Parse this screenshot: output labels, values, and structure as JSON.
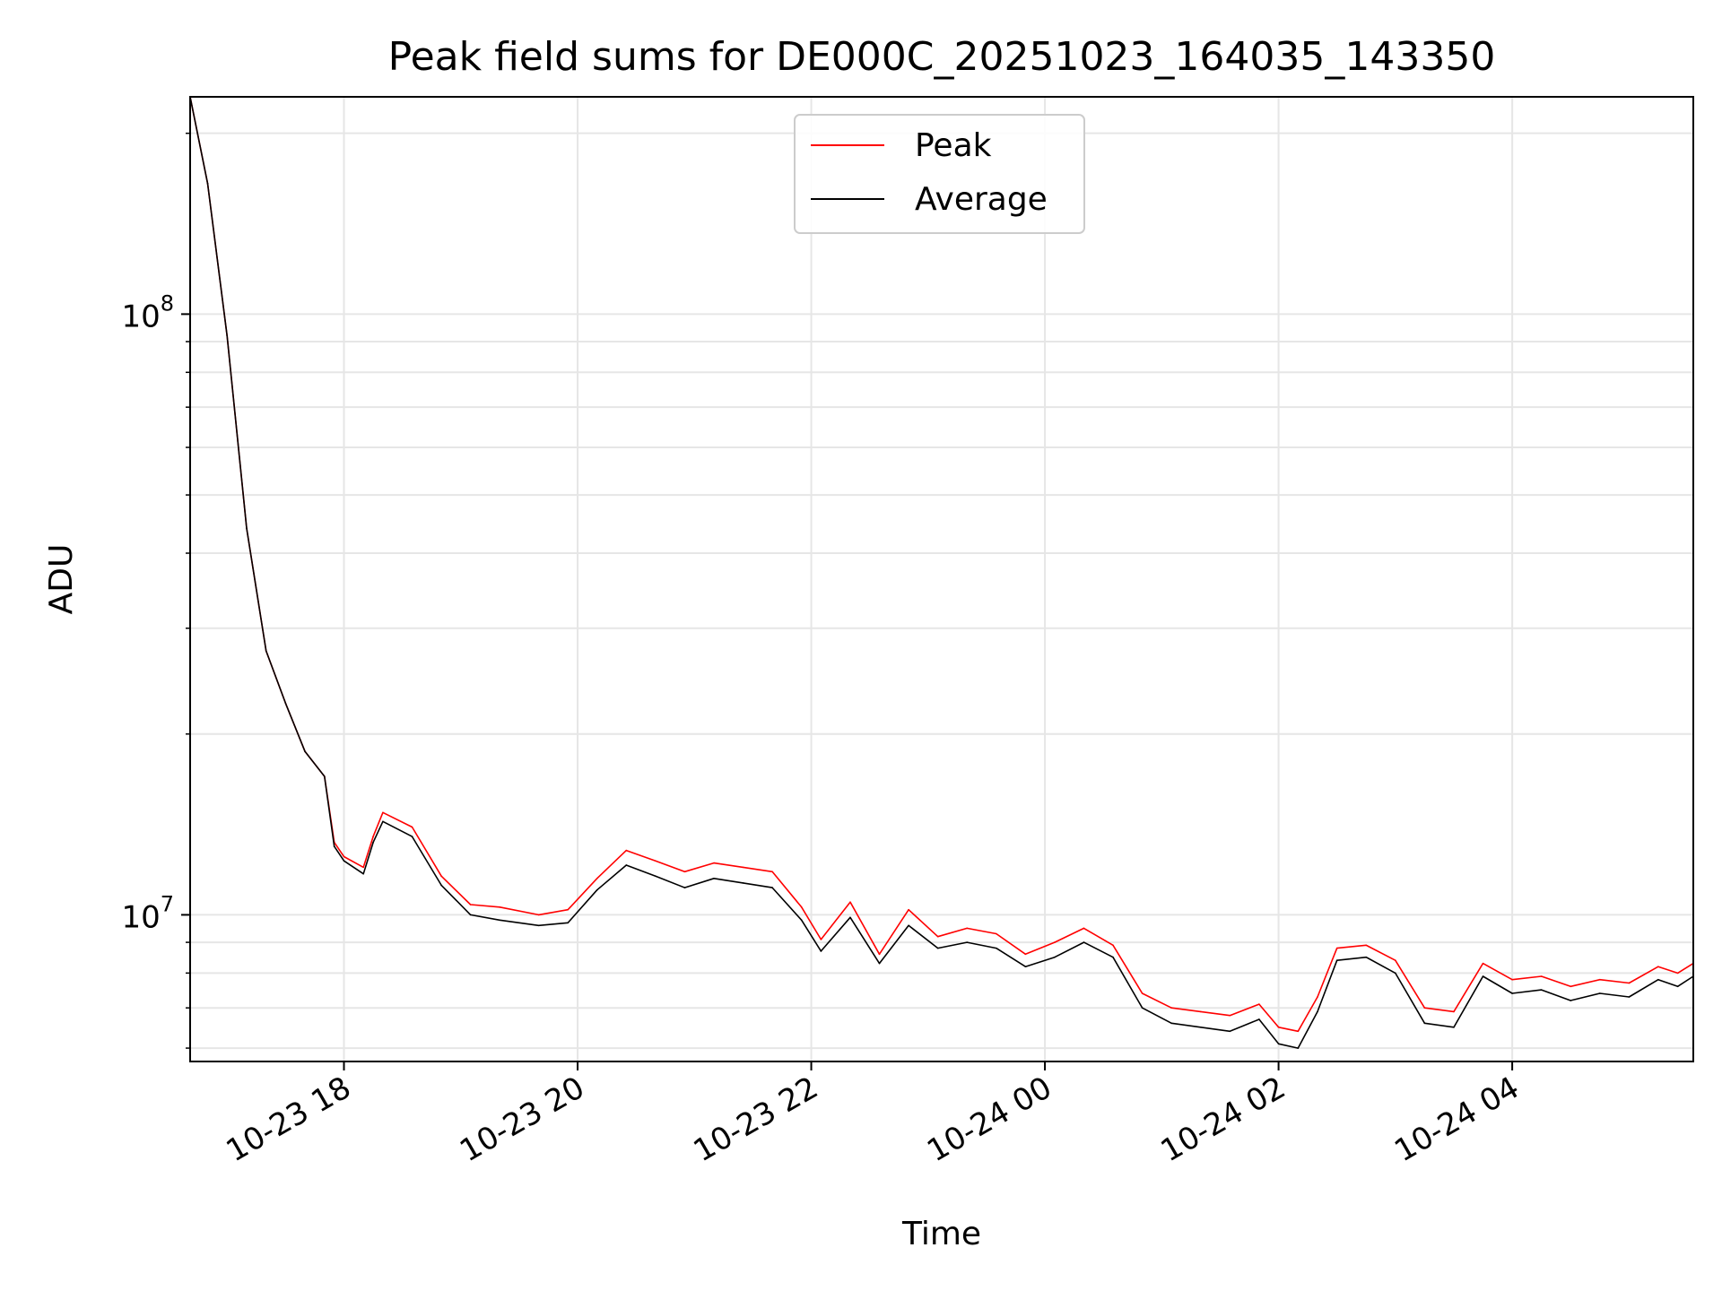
{
  "chart_data": {
    "type": "line",
    "title": "Peak field sums for DE000C_20251023_164035_143350",
    "xlabel": "Time",
    "ylabel": "ADU",
    "yscale": "log",
    "x_range": [
      "2025-10-23 16:41",
      "2025-10-24 05:33"
    ],
    "ylim": [
      5700000,
      230000000
    ],
    "grid": true,
    "legend_position": "top-center",
    "x_ticks": [
      {
        "time": "2025-10-23 18:00",
        "label": "10-23 18"
      },
      {
        "time": "2025-10-23 20:00",
        "label": "10-23 20"
      },
      {
        "time": "2025-10-23 22:00",
        "label": "10-23 22"
      },
      {
        "time": "2025-10-24 00:00",
        "label": "10-24 00"
      },
      {
        "time": "2025-10-24 02:00",
        "label": "10-24 02"
      },
      {
        "time": "2025-10-24 04:00",
        "label": "10-24 04"
      }
    ],
    "y_major_ticks": [
      {
        "value": 10000000,
        "base": "10",
        "exp": "7"
      },
      {
        "value": 100000000,
        "base": "10",
        "exp": "8"
      }
    ],
    "y_minor_ticks": [
      6000000,
      7000000,
      8000000,
      9000000,
      20000000,
      30000000,
      40000000,
      50000000,
      60000000,
      70000000,
      80000000,
      90000000,
      200000000
    ],
    "series": [
      {
        "name": "Peak",
        "color": "#ff0000",
        "points": [
          [
            "2025-10-23 16:41",
            230000000
          ],
          [
            "2025-10-23 16:50",
            165000000
          ],
          [
            "2025-10-23 17:00",
            92000000
          ],
          [
            "2025-10-23 17:10",
            44000000
          ],
          [
            "2025-10-23 17:20",
            27500000
          ],
          [
            "2025-10-23 17:30",
            22500000
          ],
          [
            "2025-10-23 17:40",
            18700000
          ],
          [
            "2025-10-23 17:50",
            17000000
          ],
          [
            "2025-10-23 17:55",
            13200000
          ],
          [
            "2025-10-23 18:00",
            12500000
          ],
          [
            "2025-10-23 18:10",
            12000000
          ],
          [
            "2025-10-23 18:15",
            13500000
          ],
          [
            "2025-10-23 18:20",
            14800000
          ],
          [
            "2025-10-23 18:35",
            14000000
          ],
          [
            "2025-10-23 18:50",
            11600000
          ],
          [
            "2025-10-23 19:05",
            10400000
          ],
          [
            "2025-10-23 19:20",
            10300000
          ],
          [
            "2025-10-23 19:40",
            10000000
          ],
          [
            "2025-10-23 19:55",
            10200000
          ],
          [
            "2025-10-23 20:10",
            11500000
          ],
          [
            "2025-10-23 20:25",
            12800000
          ],
          [
            "2025-10-23 20:40",
            12300000
          ],
          [
            "2025-10-23 20:55",
            11800000
          ],
          [
            "2025-10-23 21:10",
            12200000
          ],
          [
            "2025-10-23 21:25",
            12000000
          ],
          [
            "2025-10-23 21:40",
            11800000
          ],
          [
            "2025-10-23 21:55",
            10300000
          ],
          [
            "2025-10-23 22:05",
            9100000
          ],
          [
            "2025-10-23 22:20",
            10500000
          ],
          [
            "2025-10-23 22:35",
            8600000
          ],
          [
            "2025-10-23 22:50",
            10200000
          ],
          [
            "2025-10-23 23:05",
            9200000
          ],
          [
            "2025-10-23 23:20",
            9500000
          ],
          [
            "2025-10-23 23:35",
            9300000
          ],
          [
            "2025-10-23 23:50",
            8600000
          ],
          [
            "2025-10-24 00:05",
            9000000
          ],
          [
            "2025-10-24 00:20",
            9500000
          ],
          [
            "2025-10-24 00:35",
            8900000
          ],
          [
            "2025-10-24 00:50",
            7400000
          ],
          [
            "2025-10-24 01:05",
            7000000
          ],
          [
            "2025-10-24 01:20",
            6900000
          ],
          [
            "2025-10-24 01:35",
            6800000
          ],
          [
            "2025-10-24 01:50",
            7100000
          ],
          [
            "2025-10-24 02:00",
            6500000
          ],
          [
            "2025-10-24 02:10",
            6400000
          ],
          [
            "2025-10-24 02:20",
            7300000
          ],
          [
            "2025-10-24 02:30",
            8800000
          ],
          [
            "2025-10-24 02:45",
            8900000
          ],
          [
            "2025-10-24 03:00",
            8400000
          ],
          [
            "2025-10-24 03:15",
            7000000
          ],
          [
            "2025-10-24 03:30",
            6900000
          ],
          [
            "2025-10-24 03:45",
            8300000
          ],
          [
            "2025-10-24 04:00",
            7800000
          ],
          [
            "2025-10-24 04:15",
            7900000
          ],
          [
            "2025-10-24 04:30",
            7600000
          ],
          [
            "2025-10-24 04:45",
            7800000
          ],
          [
            "2025-10-24 05:00",
            7700000
          ],
          [
            "2025-10-24 05:15",
            8200000
          ],
          [
            "2025-10-24 05:25",
            8000000
          ],
          [
            "2025-10-24 05:33",
            8300000
          ]
        ]
      },
      {
        "name": "Average",
        "color": "#000000",
        "points": [
          [
            "2025-10-23 16:41",
            230000000
          ],
          [
            "2025-10-23 16:50",
            165000000
          ],
          [
            "2025-10-23 17:00",
            92000000
          ],
          [
            "2025-10-23 17:10",
            44000000
          ],
          [
            "2025-10-23 17:20",
            27500000
          ],
          [
            "2025-10-23 17:30",
            22500000
          ],
          [
            "2025-10-23 17:40",
            18700000
          ],
          [
            "2025-10-23 17:50",
            17000000
          ],
          [
            "2025-10-23 17:55",
            13000000
          ],
          [
            "2025-10-23 18:00",
            12300000
          ],
          [
            "2025-10-23 18:10",
            11700000
          ],
          [
            "2025-10-23 18:15",
            13200000
          ],
          [
            "2025-10-23 18:20",
            14300000
          ],
          [
            "2025-10-23 18:35",
            13500000
          ],
          [
            "2025-10-23 18:50",
            11200000
          ],
          [
            "2025-10-23 19:05",
            10000000
          ],
          [
            "2025-10-23 19:20",
            9800000
          ],
          [
            "2025-10-23 19:40",
            9600000
          ],
          [
            "2025-10-23 19:55",
            9700000
          ],
          [
            "2025-10-23 20:10",
            11000000
          ],
          [
            "2025-10-23 20:25",
            12100000
          ],
          [
            "2025-10-23 20:40",
            11600000
          ],
          [
            "2025-10-23 20:55",
            11100000
          ],
          [
            "2025-10-23 21:10",
            11500000
          ],
          [
            "2025-10-23 21:25",
            11300000
          ],
          [
            "2025-10-23 21:40",
            11100000
          ],
          [
            "2025-10-23 21:55",
            9800000
          ],
          [
            "2025-10-23 22:05",
            8700000
          ],
          [
            "2025-10-23 22:20",
            9900000
          ],
          [
            "2025-10-23 22:35",
            8300000
          ],
          [
            "2025-10-23 22:50",
            9600000
          ],
          [
            "2025-10-23 23:05",
            8800000
          ],
          [
            "2025-10-23 23:20",
            9000000
          ],
          [
            "2025-10-23 23:35",
            8800000
          ],
          [
            "2025-10-23 23:50",
            8200000
          ],
          [
            "2025-10-24 00:05",
            8500000
          ],
          [
            "2025-10-24 00:20",
            9000000
          ],
          [
            "2025-10-24 00:35",
            8500000
          ],
          [
            "2025-10-24 00:50",
            7000000
          ],
          [
            "2025-10-24 01:05",
            6600000
          ],
          [
            "2025-10-24 01:20",
            6500000
          ],
          [
            "2025-10-24 01:35",
            6400000
          ],
          [
            "2025-10-24 01:50",
            6700000
          ],
          [
            "2025-10-24 02:00",
            6100000
          ],
          [
            "2025-10-24 02:10",
            6000000
          ],
          [
            "2025-10-24 02:20",
            6900000
          ],
          [
            "2025-10-24 02:30",
            8400000
          ],
          [
            "2025-10-24 02:45",
            8500000
          ],
          [
            "2025-10-24 03:00",
            8000000
          ],
          [
            "2025-10-24 03:15",
            6600000
          ],
          [
            "2025-10-24 03:30",
            6500000
          ],
          [
            "2025-10-24 03:45",
            7900000
          ],
          [
            "2025-10-24 04:00",
            7400000
          ],
          [
            "2025-10-24 04:15",
            7500000
          ],
          [
            "2025-10-24 04:30",
            7200000
          ],
          [
            "2025-10-24 04:45",
            7400000
          ],
          [
            "2025-10-24 05:00",
            7300000
          ],
          [
            "2025-10-24 05:15",
            7800000
          ],
          [
            "2025-10-24 05:25",
            7600000
          ],
          [
            "2025-10-24 05:33",
            7900000
          ]
        ]
      }
    ]
  }
}
